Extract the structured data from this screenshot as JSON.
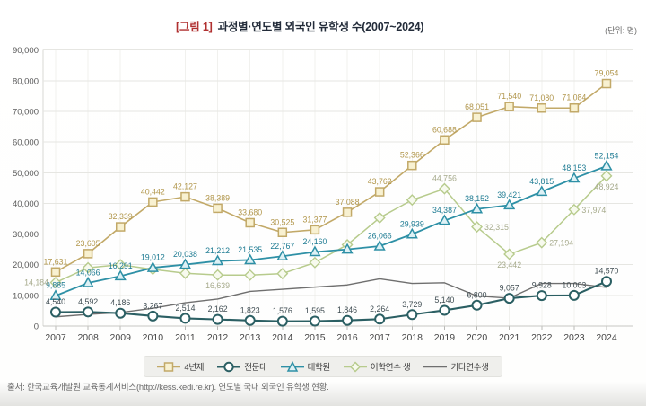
{
  "header": {
    "title_bracket": "[그림 1]",
    "title": "과정별·연도별 외국인 유학생 수(2007~2024)",
    "unit_note": "(단위: 명)"
  },
  "footer": {
    "source": "출처: 한국교육개발원 교육통계서비스(http://kess.kedi.re.kr). 연도별 국내 외국인 유학생 현황."
  },
  "chart_data": {
    "type": "line",
    "title": "과정별·연도별 외국인 유학생 수(2007~2024)",
    "unit": "명",
    "x": [
      2007,
      2008,
      2009,
      2010,
      2011,
      2012,
      2013,
      2014,
      2015,
      2016,
      2017,
      2018,
      2019,
      2020,
      2021,
      2022,
      2023,
      2024
    ],
    "ylim": [
      0,
      90000
    ],
    "ytick_interval": 10000,
    "yticks": [
      "0",
      "10,000",
      "20,000",
      "30,000",
      "40,000",
      "50,000",
      "60,000",
      "70,000",
      "80,000",
      "90,000"
    ],
    "grid": true,
    "legend_position": "bottom",
    "series": [
      {
        "name": "4년제",
        "marker": "square",
        "color": "#c2a968",
        "fill": "#f8f1d1",
        "label_color": "#b1964b",
        "values": [
          17631,
          23605,
          32339,
          40442,
          42127,
          38389,
          33680,
          30525,
          31377,
          37088,
          43762,
          52366,
          60688,
          68051,
          71540,
          71080,
          71084,
          79054
        ],
        "labels": [
          "17,631",
          "23,605",
          "32,339",
          "40,442",
          "42,127",
          "38,389",
          "33,680",
          "30,525",
          "31,377",
          "37,088",
          "43,762",
          "52,366",
          "60,688",
          "68,051",
          "71,540",
          "71,080",
          "71,084",
          "79,054"
        ],
        "label_pos": [
          null,
          null,
          null,
          null,
          null,
          null,
          null,
          null,
          null,
          null,
          null,
          null,
          null,
          null,
          null,
          null,
          null,
          null
        ]
      },
      {
        "name": "전문대",
        "marker": "circle",
        "color": "#2b5f63",
        "fill": "#ffffff",
        "label_color": "#3f4c52",
        "values": [
          4540,
          4592,
          4186,
          3267,
          2514,
          2162,
          1823,
          1576,
          1595,
          1846,
          2264,
          3729,
          5140,
          6800,
          9057,
          9928,
          10003,
          14570
        ],
        "labels": [
          "4,540",
          "4,592",
          "4,186",
          "3,267",
          "2,514",
          "2,162",
          "1,823",
          "1,576",
          "1,595",
          "1,846",
          "2,264",
          "3,729",
          "5,140",
          "6,800",
          "9,057",
          "9,928",
          "10,003",
          "14,570"
        ],
        "label_pos": [
          null,
          null,
          null,
          null,
          null,
          null,
          null,
          null,
          null,
          null,
          null,
          null,
          null,
          null,
          null,
          null,
          null,
          null
        ]
      },
      {
        "name": "대학원",
        "marker": "triangle",
        "color": "#2e90a6",
        "fill": "#def1f5",
        "label_color": "#1e7b93",
        "values": [
          9885,
          14066,
          16291,
          19012,
          20038,
          21212,
          21535,
          22767,
          24160,
          25000,
          26066,
          29939,
          34387,
          38152,
          39421,
          43815,
          48153,
          52154
        ],
        "labels": [
          "9,885",
          "14,066",
          "16,291",
          "19,012",
          "20,038",
          "21,212",
          "21,535",
          "22,767",
          "24,160",
          null,
          "26,066",
          "29,939",
          "34,387",
          "38,152",
          "39,421",
          "43,815",
          "48,153",
          "52,154"
        ],
        "label_pos": [
          null,
          null,
          null,
          null,
          null,
          null,
          null,
          null,
          null,
          null,
          null,
          null,
          null,
          null,
          null,
          null,
          null,
          null
        ]
      },
      {
        "name": "어학연수 생",
        "marker": "diamond",
        "color": "#b7cb8d",
        "fill": "#f7faee",
        "label_color": "#a6aa8c",
        "values": [
          14184,
          19000,
          20000,
          18500,
          17200,
          16639,
          16600,
          17100,
          20700,
          26500,
          35300,
          41100,
          44756,
          32315,
          23442,
          27194,
          37974,
          48924
        ],
        "labels": [
          "14,184",
          null,
          null,
          null,
          null,
          "16,639",
          null,
          null,
          null,
          null,
          null,
          null,
          "44,756",
          "32,315",
          "23,442",
          "27,194",
          "37,974",
          "48,924"
        ],
        "label_pos": [
          "left",
          null,
          null,
          null,
          null,
          "below",
          null,
          null,
          null,
          null,
          null,
          null,
          "above",
          "right",
          "below",
          "right",
          "right",
          "below"
        ]
      },
      {
        "name": "기타연수생",
        "marker": "none",
        "color": "#6f6f6f",
        "fill": "none",
        "label_color": "#6f6f6f",
        "values": [
          3000,
          3800,
          4400,
          5800,
          7600,
          8800,
          11300,
          12000,
          12700,
          13400,
          15400,
          13900,
          14100,
          9800,
          9100,
          13900,
          13900,
          12600
        ],
        "labels": [
          null,
          null,
          null,
          null,
          null,
          null,
          null,
          null,
          null,
          null,
          null,
          null,
          null,
          null,
          null,
          null,
          null,
          null
        ],
        "label_pos": [
          null,
          null,
          null,
          null,
          null,
          null,
          null,
          null,
          null,
          null,
          null,
          null,
          null,
          null,
          null,
          null,
          null,
          null
        ]
      }
    ]
  }
}
